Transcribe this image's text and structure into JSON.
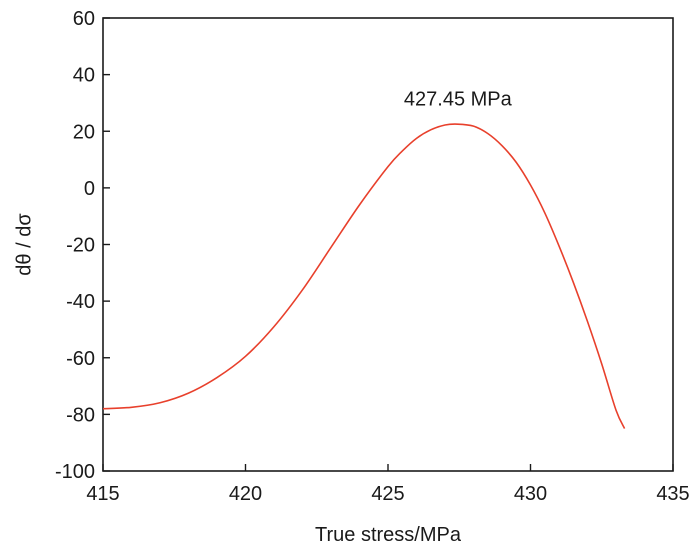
{
  "chart_data": {
    "type": "line",
    "xlabel": "True stress/MPa",
    "ylabel": "dθ / dσ",
    "xlim": [
      415,
      435
    ],
    "ylim": [
      -100,
      60
    ],
    "xticks": [
      415,
      420,
      425,
      430,
      435
    ],
    "yticks": [
      -100,
      -80,
      -60,
      -40,
      -20,
      0,
      20,
      40,
      60
    ],
    "grid": false,
    "series": [
      {
        "color": "#e8402c",
        "x": [
          415.0,
          416.0,
          417.0,
          418.0,
          419.0,
          420.0,
          421.0,
          422.0,
          423.0,
          424.0,
          425.0,
          425.5,
          426.0,
          426.5,
          427.0,
          427.45,
          428.0,
          428.5,
          429.0,
          429.5,
          430.0,
          430.5,
          431.0,
          431.5,
          432.0,
          432.5,
          433.0,
          433.3
        ],
        "y": [
          -78.0,
          -77.5,
          -75.9,
          -72.5,
          -67.0,
          -59.5,
          -49.0,
          -36.0,
          -21.0,
          -6.0,
          7.5,
          13.0,
          17.5,
          20.5,
          22.2,
          22.5,
          21.8,
          19.2,
          14.9,
          9.0,
          1.0,
          -8.8,
          -20.5,
          -33.3,
          -47.2,
          -62.2,
          -78.5,
          -85.0
        ]
      }
    ],
    "annotations": [
      {
        "text": "427.45 MPa",
        "x": 427.45,
        "y": 31.5
      }
    ]
  }
}
